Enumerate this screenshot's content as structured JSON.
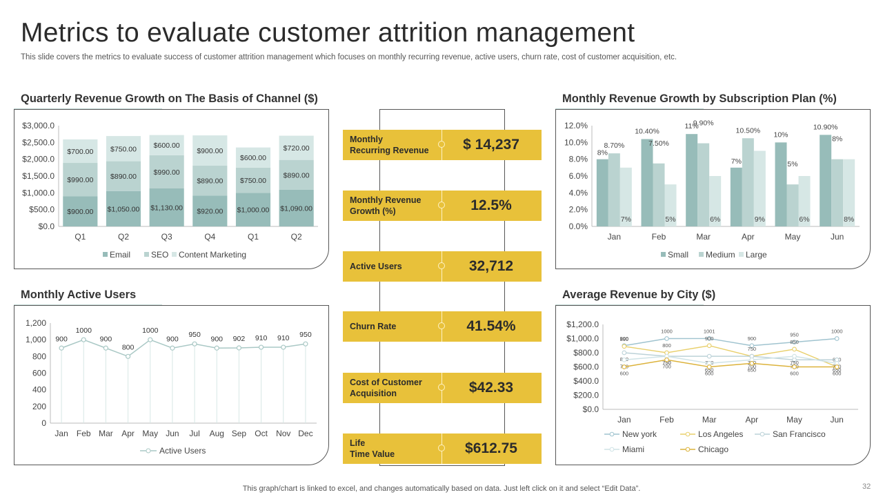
{
  "title": "Metrics to evaluate customer attrition management",
  "subtitle": "This slide covers the metrics to evaluate success of customer attrition management which focuses on monthly recurring revenue, active users, churn rate, cost of customer acquisition, etc.",
  "footer": "This graph/chart is linked to excel,  and changes automatically based on data. Just left click on it and select “Edit Data”.",
  "page_number": "32",
  "colors": {
    "teal_dark": "#97bcb9",
    "teal_mid": "#bad3d0",
    "teal_light": "#d6e7e5",
    "accent": "#e8c13a"
  },
  "kpis": [
    {
      "label": "Monthly\nRecurring Revenue",
      "value": "$ 14,237"
    },
    {
      "label": "Monthly Revenue\nGrowth (%)",
      "value": "12.5%"
    },
    {
      "label": "Active Users",
      "value": "32,712"
    },
    {
      "label": "Churn Rate",
      "value": "41.54%"
    },
    {
      "label": "Cost of Customer\nAcquisition",
      "value": "$42.33"
    },
    {
      "label": "Life\nTime Value",
      "value": "$612.75"
    }
  ],
  "chart_data": [
    {
      "type": "bar",
      "stacked": true,
      "title": "Quarterly Revenue Growth on The Basis of Channel ($)",
      "categories": [
        "Q1",
        "Q2",
        "Q3",
        "Q4",
        "Q1",
        "Q2"
      ],
      "series": [
        {
          "name": "Email",
          "values": [
            900,
            1050,
            1130,
            920,
            1000,
            1090
          ],
          "labels": [
            "$900.00",
            "$1,050.00",
            "$1,130.00",
            "$920.00",
            "$1,000.00",
            "$1,090.00"
          ]
        },
        {
          "name": "SEO",
          "values": [
            990,
            890,
            990,
            890,
            750,
            890
          ],
          "labels": [
            "$990.00",
            "$890.00",
            "$990.00",
            "$890.00",
            "$750.00",
            "$890.00"
          ]
        },
        {
          "name": "Content Marketing",
          "values": [
            700,
            750,
            600,
            900,
            600,
            720
          ],
          "labels": [
            "$700.00",
            "$750.00",
            "$600.00",
            "$900.00",
            "$600.00",
            "$720.00"
          ]
        }
      ],
      "ylim": [
        0,
        3000
      ],
      "yticks": [
        "$0.0",
        "$500.0",
        "$1,000.0",
        "$1,500.0",
        "$2,000.0",
        "$2,500.0",
        "$3,000.0"
      ],
      "legend": "bottom"
    },
    {
      "type": "bar",
      "title": "Monthly Revenue Growth by Subscription Plan (%)",
      "categories": [
        "Jan",
        "Feb",
        "Mar",
        "Apr",
        "May",
        "Jun"
      ],
      "series": [
        {
          "name": "Small",
          "values": [
            8,
            10.4,
            11,
            7,
            10,
            10.9
          ],
          "labels": [
            "8%",
            "10.40%",
            "11%",
            "7%",
            "10%",
            "10.90%"
          ]
        },
        {
          "name": "Medium",
          "values": [
            8.7,
            7.5,
            9.9,
            10.5,
            5,
            8
          ],
          "labels": [
            "8.70%",
            "7.50%",
            "9.90%",
            "10.50%",
            "5%",
            "8%"
          ]
        },
        {
          "name": "Large",
          "values": [
            7,
            5,
            6,
            9,
            6,
            8
          ],
          "labels": [
            "7%",
            "5%",
            "6%",
            "9%",
            "6%",
            "8%"
          ]
        }
      ],
      "ylim": [
        0,
        12
      ],
      "yticks": [
        "0.0%",
        "2.0%",
        "4.0%",
        "6.0%",
        "8.0%",
        "10.0%",
        "12.0%"
      ],
      "legend": "bottom"
    },
    {
      "type": "line",
      "title": "Monthly Active Users",
      "categories": [
        "Jan",
        "Feb",
        "Mar",
        "Apr",
        "May",
        "Jun",
        "Jul",
        "Aug",
        "Sep",
        "Oct",
        "Nov",
        "Dec"
      ],
      "series": [
        {
          "name": "Active Users",
          "values": [
            900,
            1000,
            900,
            800,
            1000,
            900,
            950,
            900,
            902,
            910,
            910,
            950
          ]
        }
      ],
      "ylim": [
        0,
        1200
      ],
      "yticks": [
        "0",
        "200",
        "400",
        "600",
        "800",
        "1,000",
        "1,200"
      ],
      "legend": "bottom"
    },
    {
      "type": "line",
      "title": "Average Revenue by City ($)",
      "categories": [
        "Jan",
        "Feb",
        "Mar",
        "Apr",
        "May",
        "Jun"
      ],
      "series": [
        {
          "name": "New york",
          "values": [
            900,
            1000,
            1001,
            900,
            950,
            1000
          ]
        },
        {
          "name": "Los Angeles",
          "values": [
            890,
            800,
            900,
            750,
            850,
            600
          ]
        },
        {
          "name": "San Francisco",
          "values": [
            800,
            750,
            750,
            750,
            700,
            700
          ]
        },
        {
          "name": "Miami",
          "values": [
            700,
            750,
            650,
            700,
            750,
            650
          ]
        },
        {
          "name": "Chicago",
          "values": [
            600,
            700,
            600,
            650,
            600,
            600
          ]
        }
      ],
      "ylim": [
        0,
        1200
      ],
      "yticks": [
        "$0.0",
        "$200.0",
        "$400.0",
        "$600.0",
        "$800.0",
        "$1,000.0",
        "$1,200.0"
      ],
      "legend": "bottom"
    }
  ]
}
